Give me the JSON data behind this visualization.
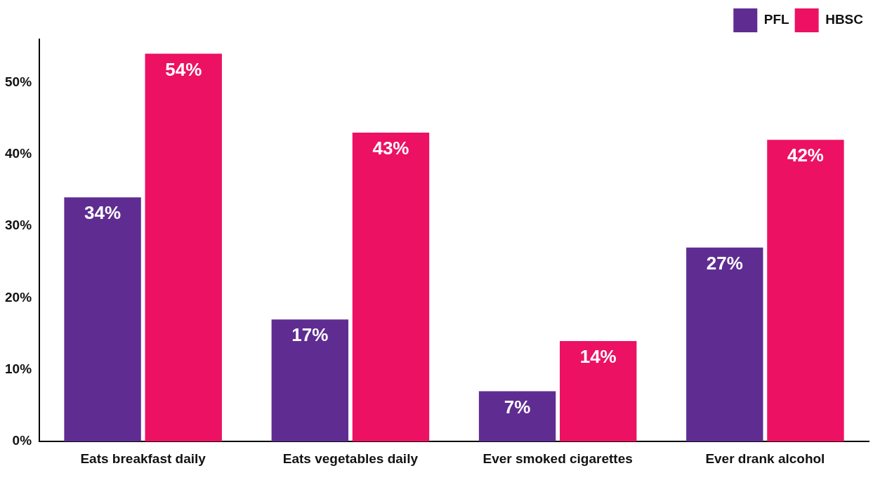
{
  "chart_data": {
    "type": "bar",
    "categories": [
      "Eats breakfast daily",
      "Eats vegetables daily",
      "Ever smoked cigarettes",
      "Ever drank alcohol"
    ],
    "series": [
      {
        "name": "PFL",
        "color": "#5f2d91",
        "values": [
          34,
          17,
          7,
          27
        ]
      },
      {
        "name": "HBSC",
        "color": "#ec1163",
        "values": [
          54,
          43,
          14,
          42
        ]
      }
    ],
    "ylim": [
      0,
      56
    ],
    "yticks": [
      {
        "value": 0,
        "label": "0%"
      },
      {
        "value": 10,
        "label": "10%"
      },
      {
        "value": 20,
        "label": "20%"
      },
      {
        "value": 30,
        "label": "30%"
      },
      {
        "value": 40,
        "label": "40%"
      },
      {
        "value": 50,
        "label": "50%"
      }
    ],
    "value_labels": [
      [
        "34%",
        "17%",
        "7%",
        "27%"
      ],
      [
        "54%",
        "43%",
        "14%",
        "42%"
      ]
    ],
    "legend": "top right",
    "grid": false
  }
}
